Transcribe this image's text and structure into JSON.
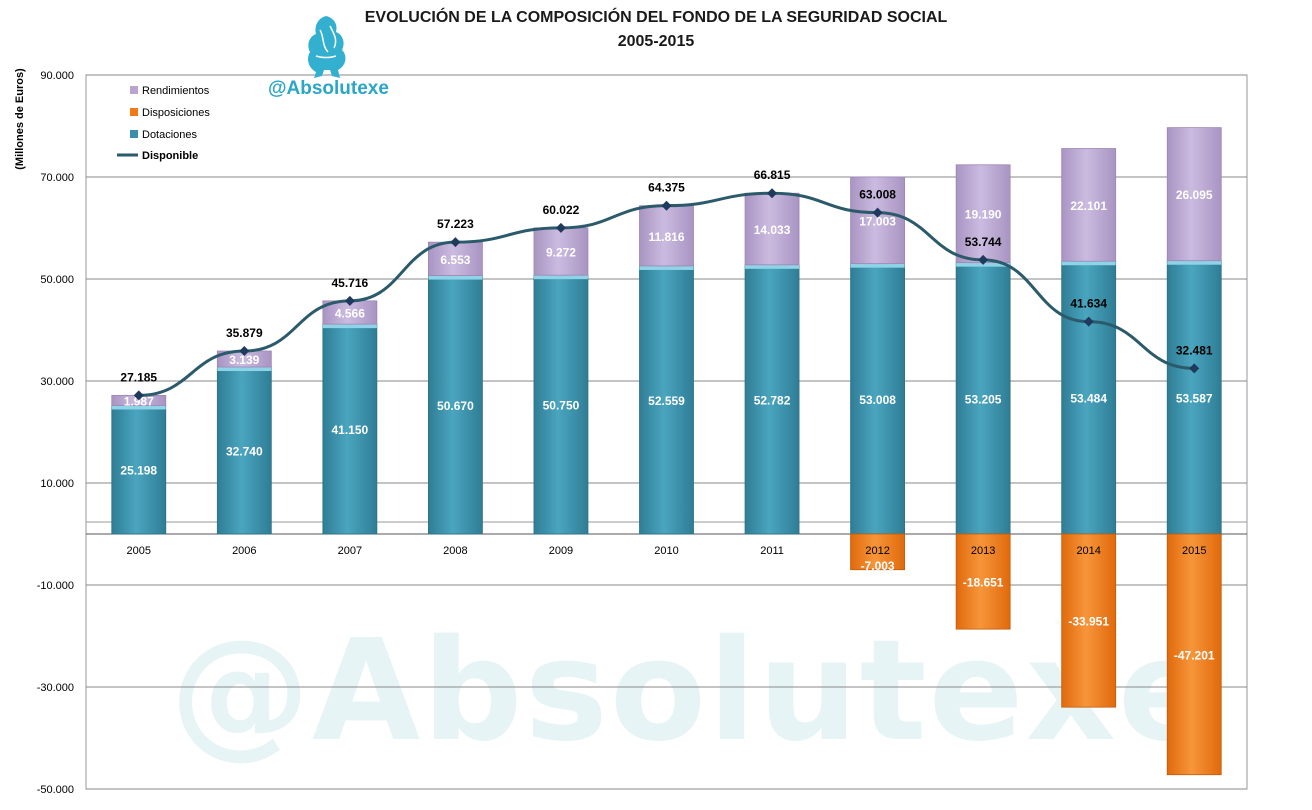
{
  "header": {
    "title_line1": "EVOLUCIÓN DE LA COMPOSICIÓN DEL FONDO DE LA SEGURIDAD SOCIAL",
    "title_line2": "2005-2015",
    "handle": "@Absolutexe",
    "watermark": "@Absolutexe"
  },
  "colors": {
    "rendimientos": "#b8a4cf",
    "disposiciones": "#f07a18",
    "dotaciones": "#3a8ea8",
    "disponible": "#2b5a6b",
    "marker": "#1f3a5c"
  },
  "chart_data": {
    "type": "bar",
    "ylabel": "(Millones de Euros)",
    "ylim": [
      -50000,
      90000
    ],
    "yticks": [
      90000,
      70000,
      50000,
      30000,
      10000,
      -10000,
      -30000,
      -50000
    ],
    "ytick_labels": [
      "90.000",
      "70.000",
      "50.000",
      "30.000",
      "10.000",
      "-10.000",
      "-30.000",
      "-50.000"
    ],
    "categories": [
      "2005",
      "2006",
      "2007",
      "2008",
      "2009",
      "2010",
      "2011",
      "2012",
      "2013",
      "2014",
      "2015"
    ],
    "legend_position": "top-left",
    "series": [
      {
        "name": "Rendimientos",
        "type": "stacked-bar",
        "values": [
          1987,
          3139,
          4566,
          6553,
          9272,
          11816,
          14033,
          17003,
          19190,
          22101,
          26095
        ],
        "labels": [
          "1.987",
          "3.139",
          "4.566",
          "6.553",
          "9.272",
          "11.816",
          "14.033",
          "17.003",
          "19.190",
          "22.101",
          "26.095"
        ]
      },
      {
        "name": "Disposiciones",
        "type": "bar",
        "values": [
          null,
          null,
          null,
          null,
          null,
          null,
          null,
          -7003,
          -18651,
          -33951,
          -47201
        ],
        "labels": [
          "",
          "",
          "",
          "",
          "",
          "",
          "",
          "-7.003",
          "-18.651",
          "-33.951",
          "-47.201"
        ]
      },
      {
        "name": "Dotaciones",
        "type": "stacked-bar",
        "values": [
          25198,
          32740,
          41150,
          50670,
          50750,
          52559,
          52782,
          53008,
          53205,
          53484,
          53587
        ],
        "labels": [
          "25.198",
          "32.740",
          "41.150",
          "50.670",
          "50.750",
          "52.559",
          "52.782",
          "53.008",
          "53.205",
          "53.484",
          "53.587"
        ]
      },
      {
        "name": "Disponible",
        "type": "line",
        "values": [
          27185,
          35879,
          45716,
          57223,
          60022,
          64375,
          66815,
          63008,
          53744,
          41634,
          32481
        ],
        "labels": [
          "27.185",
          "35.879",
          "45.716",
          "57.223",
          "60.022",
          "64.375",
          "66.815",
          "63.008",
          "53.744",
          "41.634",
          "32.481"
        ]
      }
    ]
  }
}
